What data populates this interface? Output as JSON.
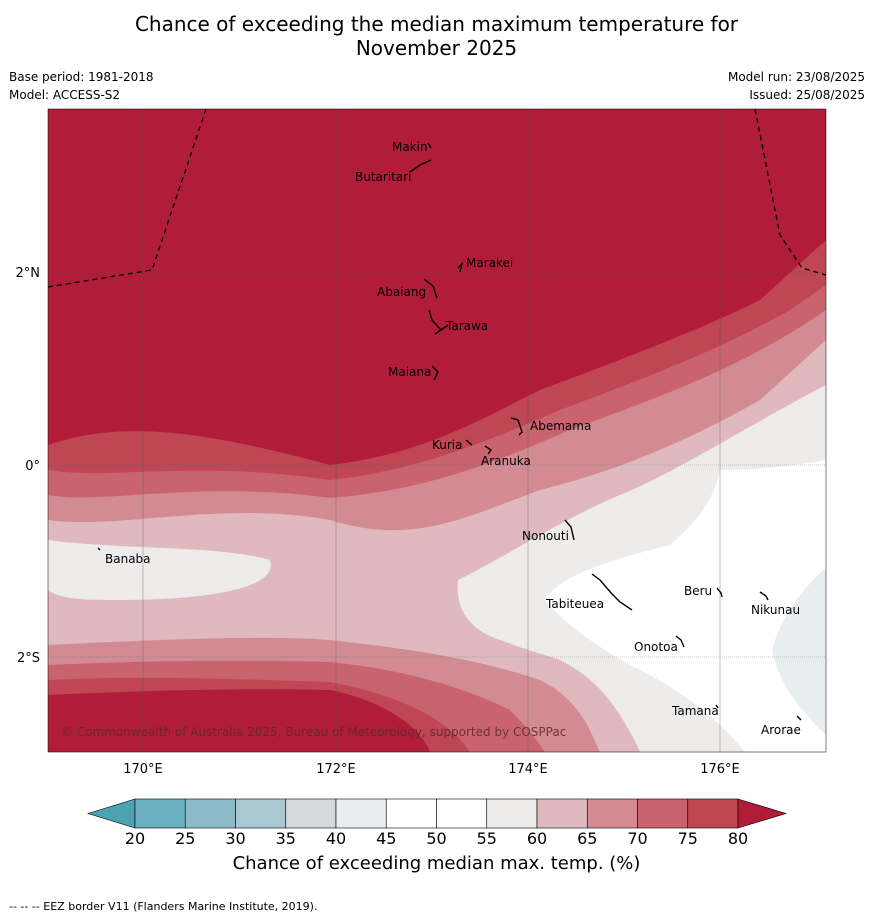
{
  "title_line1": "Chance of exceeding the median maximum temperature for",
  "title_line2": "November 2025",
  "base_period": "Base period: 1981-2018",
  "model": "Model: ACCESS-S2",
  "model_run": "Model run: 23/08/2025",
  "issued": "Issued: 25/08/2025",
  "map": {
    "lon_labels": [
      "170°E",
      "172°E",
      "174°E",
      "176°E"
    ],
    "lat_labels": [
      "2°N",
      "0°",
      "2°S"
    ],
    "places": [
      "Makin",
      "Butaritari",
      "Marakei",
      "Abaiang",
      "Tarawa",
      "Maiana",
      "Abemama",
      "Kuria",
      "Aranuka",
      "Nonouti",
      "Banaba",
      "Tabiteuea",
      "Beru",
      "Nikunau",
      "Onotoa",
      "Tamana",
      "Arorae"
    ],
    "copyright": "© Commonwealth of Australia 2025, Bureau of Meteorology, supported by COSPPac"
  },
  "colorbar": {
    "ticks": [
      "20",
      "25",
      "30",
      "35",
      "40",
      "45",
      "50",
      "55",
      "60",
      "65",
      "70",
      "75",
      "80"
    ],
    "colors": [
      "#69afbf",
      "#8cbac7",
      "#a9c8cf",
      "#d3dadd",
      "#e8eef0",
      "#ffffff",
      "#ffffff",
      "#eeeceb",
      "#e0b9bf",
      "#d38b93",
      "#c9646f",
      "#bf4653"
    ],
    "under_color": "#4ba3b2",
    "over_color": "#b11d39",
    "label": "Chance of exceeding median max. temp. (%)"
  },
  "footnote": "--  --  -- EEZ border V11 (Flanders Marine Institute, 2019)."
}
